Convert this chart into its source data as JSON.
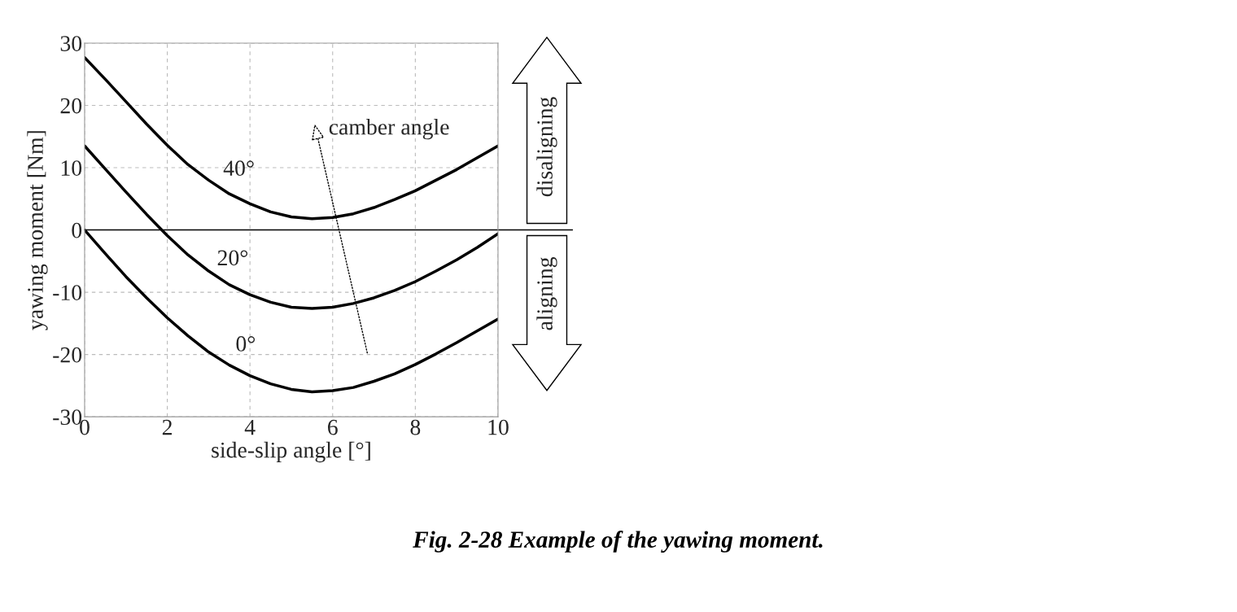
{
  "chart_data": {
    "type": "line",
    "xlabel": "side-slip angle [°]",
    "ylabel": "yawing moment [Nm]",
    "x": [
      0,
      0.5,
      1,
      1.5,
      2,
      2.5,
      3,
      3.5,
      4,
      4.5,
      5,
      5.5,
      6,
      6.5,
      7,
      7.5,
      8,
      8.5,
      9,
      9.5,
      10
    ],
    "series": [
      {
        "color": "#000000",
        "values": [
          27.7,
          24.2,
          20.6,
          17.0,
          13.6,
          10.5,
          8.0,
          5.8,
          4.2,
          2.9,
          2.1,
          1.8,
          2.0,
          2.6,
          3.6,
          4.9,
          6.3,
          8.0,
          9.7,
          11.6,
          13.5
        ]
      },
      {
        "color": "#000000",
        "values": [
          13.5,
          9.8,
          6.1,
          2.5,
          -0.9,
          -4.0,
          -6.6,
          -8.8,
          -10.4,
          -11.6,
          -12.4,
          -12.6,
          -12.4,
          -11.8,
          -10.9,
          -9.7,
          -8.3,
          -6.6,
          -4.8,
          -2.8,
          -0.6
        ]
      },
      {
        "color": "#000000",
        "values": [
          0,
          -3.8,
          -7.5,
          -10.9,
          -14.1,
          -17.0,
          -19.6,
          -21.7,
          -23.4,
          -24.7,
          -25.6,
          -26.0,
          -25.8,
          -25.3,
          -24.3,
          -23.1,
          -21.6,
          -19.9,
          -18.1,
          -16.2,
          -14.3
        ]
      }
    ],
    "xlim": [
      0,
      10
    ],
    "ylim": [
      -30,
      30
    ],
    "xticks": [
      0,
      2,
      4,
      6,
      8,
      10
    ],
    "yticks": [
      -30,
      -20,
      -10,
      0,
      10,
      20,
      30
    ],
    "grid": true,
    "line_style": "solid",
    "marker": "none",
    "ref_lines": [
      {
        "axis": "y",
        "value": 0,
        "color": "#000000",
        "line_style": "solid"
      }
    ],
    "annotations": [
      "40°",
      "20°",
      "0°",
      "camber angle",
      "disaligning",
      "aligning",
      "Fig. 2-28 Example of the yawing moment."
    ]
  }
}
